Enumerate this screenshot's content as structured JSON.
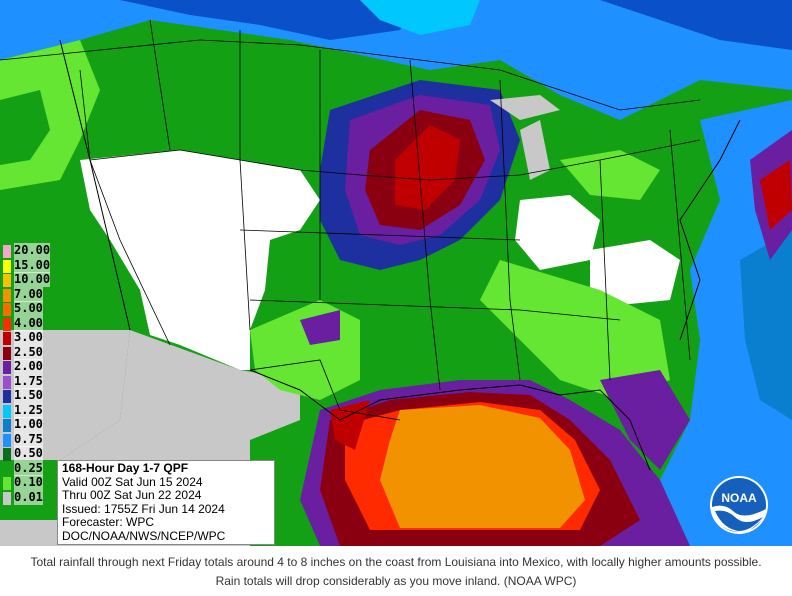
{
  "legend": {
    "items": [
      {
        "label": "20.00",
        "color": "#f4a8c8"
      },
      {
        "label": "15.00",
        "color": "#ffff00"
      },
      {
        "label": "10.00",
        "color": "#f5c200"
      },
      {
        "label": "7.00",
        "color": "#f39200"
      },
      {
        "label": "5.00",
        "color": "#ff6a00"
      },
      {
        "label": "4.00",
        "color": "#ff2a00"
      },
      {
        "label": "3.00",
        "color": "#c00000"
      },
      {
        "label": "2.50",
        "color": "#8b0010"
      },
      {
        "label": "2.00",
        "color": "#6a1fa0"
      },
      {
        "label": "1.75",
        "color": "#9b4fd0"
      },
      {
        "label": "1.50",
        "color": "#1e2fa0"
      },
      {
        "label": "1.25",
        "color": "#00c8ff"
      },
      {
        "label": "1.00",
        "color": "#0a7fd0"
      },
      {
        "label": "0.75",
        "color": "#1e90ff"
      },
      {
        "label": "0.50",
        "color": "#0b6e1a"
      },
      {
        "label": "0.25",
        "color": "#14a014"
      },
      {
        "label": "0.10",
        "color": "#64e632"
      },
      {
        "label": "0.01",
        "color": "#c8c8c8"
      }
    ]
  },
  "info_box": {
    "title": "168-Hour Day 1-7 QPF",
    "valid": "Valid 00Z Sat Jun 15 2024",
    "thru": "Thru 00Z Sat Jun 22 2024",
    "issued": "Issued: 1755Z Fri Jun 14 2024",
    "forecaster": "Forecaster: WPC",
    "agency": "DOC/NOAA/NWS/NCEP/WPC"
  },
  "logo": {
    "text": "NOAA"
  },
  "caption": "Total rainfall through next Friday totals around 4 to 8 inches on the coast from Louisiana into Mexico, with locally higher amounts possible. Rain totals will drop considerably as you move inland. (NOAA WPC)",
  "colors": {
    "no_precip": "#ffffff",
    "outside_area": "#c8c8c8",
    "ocean_blue": "#1e90ff",
    "deep_blue": "#0a50c8",
    "light_green": "#64e632",
    "mid_green": "#14a014",
    "dark_green": "#0b6e1a",
    "orange": "#f39200",
    "red": "#c00000",
    "purple": "#6a1fa0"
  }
}
